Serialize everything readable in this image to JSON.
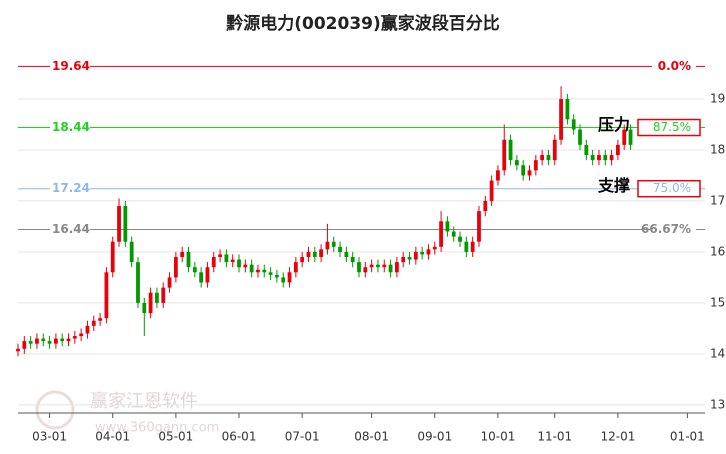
{
  "chart_data": {
    "type": "candlestick",
    "title": "黔源电力(002039)赢家波段百分比",
    "watermark": "赢家江恩软件",
    "watermark_url": "www.360gann.com",
    "up_color": "#e8000b",
    "down_color": "#009a00",
    "xlim": [
      0,
      108
    ],
    "ylim": [
      12.84,
      19.8
    ],
    "yticks": [
      13,
      14,
      15,
      16,
      17,
      18,
      19
    ],
    "xticks": [
      {
        "value": 5,
        "label": "03-01"
      },
      {
        "value": 15,
        "label": "04-01"
      },
      {
        "value": 25,
        "label": "05-01"
      },
      {
        "value": 35,
        "label": "06-01"
      },
      {
        "value": 45,
        "label": "07-01"
      },
      {
        "value": 56,
        "label": "08-01"
      },
      {
        "value": 66,
        "label": "09-01"
      },
      {
        "value": 76,
        "label": "10-01"
      },
      {
        "value": 85,
        "label": "11-01"
      },
      {
        "value": 95,
        "label": "12-01"
      },
      {
        "value": 106,
        "label": "01-01"
      }
    ],
    "levels": [
      {
        "value": 19.64,
        "label": "0.0%",
        "color": "#e8000b"
      },
      {
        "value": 18.44,
        "label": "87.5%",
        "color": "#1ed21e",
        "annotation": "压力",
        "boxed": true
      },
      {
        "value": 17.24,
        "label": "75.0%",
        "color": "#8fb8e8",
        "annotation": "支撑",
        "boxed": true
      },
      {
        "value": 16.44,
        "label": "66.67%",
        "color": "#888888"
      }
    ],
    "ohlc": {
      "open": [
        14.05,
        14.1,
        14.25,
        14.2,
        14.3,
        14.25,
        14.2,
        14.3,
        14.25,
        14.3,
        14.35,
        14.4,
        14.55,
        14.65,
        14.7,
        15.6,
        16.2,
        16.9,
        16.2,
        15.8,
        15.0,
        14.8,
        15.2,
        15.0,
        15.3,
        15.5,
        15.9,
        16.0,
        15.7,
        15.6,
        15.4,
        15.7,
        15.9,
        15.95,
        15.8,
        15.85,
        15.7,
        15.75,
        15.6,
        15.65,
        15.6,
        15.55,
        15.5,
        15.4,
        15.6,
        15.8,
        15.9,
        16.0,
        15.9,
        16.05,
        16.2,
        16.1,
        16.0,
        15.9,
        15.8,
        15.6,
        15.7,
        15.75,
        15.7,
        15.75,
        15.6,
        15.8,
        15.9,
        15.85,
        16.0,
        15.95,
        16.05,
        16.1,
        16.6,
        16.4,
        16.3,
        16.2,
        16.0,
        16.2,
        16.8,
        17.0,
        17.4,
        17.6,
        18.2,
        17.8,
        17.7,
        17.5,
        17.6,
        17.8,
        17.9,
        17.8,
        18.2,
        19.0,
        18.6,
        18.4,
        18.1,
        17.9,
        17.8,
        17.9,
        17.8,
        17.9,
        18.1,
        18.4
      ],
      "high": [
        14.2,
        14.35,
        14.35,
        14.4,
        14.4,
        14.35,
        14.4,
        14.4,
        14.4,
        14.45,
        14.5,
        14.65,
        14.75,
        14.8,
        15.7,
        16.3,
        17.05,
        17.0,
        16.3,
        15.9,
        15.1,
        15.3,
        15.3,
        15.4,
        15.6,
        16.0,
        16.1,
        16.1,
        15.8,
        15.7,
        15.8,
        16.0,
        16.05,
        16.05,
        15.95,
        15.95,
        15.85,
        15.85,
        15.75,
        15.75,
        15.7,
        15.65,
        15.6,
        15.7,
        15.9,
        16.0,
        16.1,
        16.1,
        16.15,
        16.55,
        16.3,
        16.2,
        16.1,
        16.0,
        15.9,
        15.8,
        15.85,
        15.85,
        15.85,
        15.85,
        15.9,
        16.0,
        16.0,
        16.1,
        16.1,
        16.15,
        16.2,
        16.8,
        16.7,
        16.5,
        16.4,
        16.3,
        16.3,
        16.9,
        17.1,
        17.5,
        17.7,
        18.5,
        18.3,
        17.9,
        17.8,
        17.7,
        17.9,
        18.0,
        18.0,
        18.3,
        19.25,
        19.1,
        18.7,
        18.5,
        18.2,
        18.0,
        18.0,
        18.0,
        18.0,
        18.2,
        18.5,
        18.5
      ],
      "low": [
        13.95,
        14.0,
        14.1,
        14.1,
        14.15,
        14.1,
        14.1,
        14.15,
        14.15,
        14.2,
        14.25,
        14.3,
        14.45,
        14.55,
        14.6,
        15.5,
        16.1,
        16.1,
        15.7,
        14.9,
        14.35,
        14.7,
        14.9,
        14.9,
        15.2,
        15.4,
        15.8,
        15.6,
        15.5,
        15.3,
        15.3,
        15.6,
        15.8,
        15.7,
        15.7,
        15.6,
        15.6,
        15.5,
        15.5,
        15.5,
        15.45,
        15.4,
        15.3,
        15.3,
        15.5,
        15.7,
        15.8,
        15.8,
        15.8,
        15.95,
        16.0,
        15.9,
        15.8,
        15.7,
        15.5,
        15.5,
        15.6,
        15.6,
        15.6,
        15.5,
        15.5,
        15.7,
        15.75,
        15.75,
        15.85,
        15.85,
        15.95,
        16.0,
        16.3,
        16.2,
        16.1,
        15.9,
        15.9,
        16.1,
        16.7,
        16.9,
        17.3,
        17.5,
        17.7,
        17.6,
        17.4,
        17.4,
        17.5,
        17.7,
        17.7,
        17.7,
        18.1,
        18.5,
        18.3,
        18.0,
        17.8,
        17.7,
        17.7,
        17.7,
        17.7,
        17.8,
        18.0,
        18.0
      ],
      "close": [
        14.1,
        14.25,
        14.2,
        14.3,
        14.25,
        14.2,
        14.3,
        14.25,
        14.3,
        14.35,
        14.4,
        14.55,
        14.65,
        14.7,
        15.6,
        16.2,
        16.9,
        16.2,
        15.8,
        15.0,
        14.8,
        15.2,
        15.0,
        15.3,
        15.5,
        15.9,
        16.0,
        15.7,
        15.6,
        15.4,
        15.7,
        15.9,
        15.95,
        15.8,
        15.85,
        15.7,
        15.75,
        15.6,
        15.65,
        15.6,
        15.55,
        15.5,
        15.4,
        15.6,
        15.8,
        15.9,
        16.0,
        15.9,
        16.05,
        16.2,
        16.1,
        16.0,
        15.9,
        15.8,
        15.6,
        15.7,
        15.75,
        15.7,
        15.75,
        15.6,
        15.8,
        15.9,
        15.85,
        16.0,
        15.95,
        16.05,
        16.1,
        16.6,
        16.4,
        16.3,
        16.2,
        16.0,
        16.2,
        16.8,
        17.0,
        17.4,
        17.6,
        18.2,
        17.8,
        17.7,
        17.5,
        17.6,
        17.8,
        17.9,
        17.8,
        18.2,
        19.0,
        18.6,
        18.4,
        18.1,
        17.9,
        17.8,
        17.9,
        17.8,
        17.9,
        18.1,
        18.4,
        18.1
      ]
    }
  }
}
